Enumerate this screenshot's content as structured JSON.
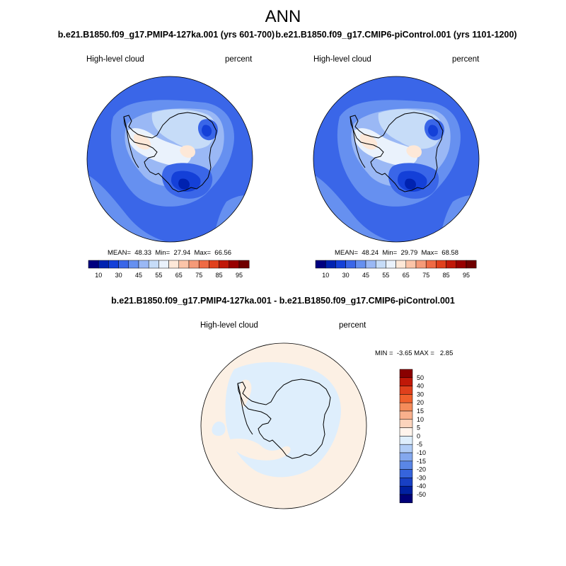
{
  "title": "ANN",
  "panels": [
    {
      "title": "b.e21.B1850.f09_g17.PMIP4-127ka.001 (yrs 601-700)",
      "left_label": "High-level cloud",
      "right_label": "percent",
      "stats": "MEAN=  48.33  Min=  27.94  Max=  66.56"
    },
    {
      "title": "b.e21.B1850.f09_g17.CMIP6-piControl.001 (yrs 1101-1200)",
      "left_label": "High-level cloud",
      "right_label": "percent",
      "stats": "MEAN=  48.24  Min=  29.79  Max=  68.58"
    },
    {
      "title": "b.e21.B1850.f09_g17.PMIP4-127ka.001 - b.e21.B1850.f09_g17.CMIP6-piControl.001",
      "left_label": "High-level cloud",
      "right_label": "percent",
      "stats": "MIN =  -3.65 MAX =   2.85"
    }
  ],
  "chart_data": [
    {
      "type": "heatmap",
      "title": "b.e21.B1850.f09_g17.PMIP4-127ka.001 (yrs 601-700)",
      "variable": "High-level cloud",
      "units": "percent",
      "mean": 48.33,
      "min": 27.94,
      "max": 66.56,
      "colorbar": {
        "tick_labels": [
          "10",
          "30",
          "45",
          "55",
          "65",
          "75",
          "85",
          "95"
        ],
        "colors": [
          "#000080",
          "#0022b0",
          "#1440d8",
          "#3a66e8",
          "#6690f0",
          "#9ab8f5",
          "#c6dcf8",
          "#eaf2fc",
          "#fde8d8",
          "#fbc4a8",
          "#f59a78",
          "#ef6a44",
          "#e0401c",
          "#c01808",
          "#980000",
          "#700000"
        ]
      }
    },
    {
      "type": "heatmap",
      "title": "b.e21.B1850.f09_g17.CMIP6-piControl.001 (yrs 1101-1200)",
      "variable": "High-level cloud",
      "units": "percent",
      "mean": 48.24,
      "min": 29.79,
      "max": 68.58,
      "colorbar": {
        "tick_labels": [
          "10",
          "30",
          "45",
          "55",
          "65",
          "75",
          "85",
          "95"
        ],
        "colors": [
          "#000080",
          "#0022b0",
          "#1440d8",
          "#3a66e8",
          "#6690f0",
          "#9ab8f5",
          "#c6dcf8",
          "#eaf2fc",
          "#fde8d8",
          "#fbc4a8",
          "#f59a78",
          "#ef6a44",
          "#e0401c",
          "#c01808",
          "#980000",
          "#700000"
        ]
      }
    },
    {
      "type": "heatmap",
      "title": "b.e21.B1850.f09_g17.PMIP4-127ka.001 - b.e21.B1850.f09_g17.CMIP6-piControl.001",
      "variable": "High-level cloud",
      "units": "percent",
      "min": -3.65,
      "max": 2.85,
      "colorbar": {
        "tick_labels": [
          "50",
          "40",
          "30",
          "20",
          "15",
          "10",
          "5",
          "0",
          "-5",
          "-10",
          "-15",
          "-20",
          "-30",
          "-40",
          "-50"
        ],
        "colors": [
          "#8a0000",
          "#c01808",
          "#e0401c",
          "#f0602c",
          "#f58c5a",
          "#f9b08c",
          "#fcd4bc",
          "#fff4ec",
          "#deeefc",
          "#b0ccf6",
          "#84a8ee",
          "#5a86e6",
          "#3664dc",
          "#1840c4",
          "#0020a0",
          "#000078"
        ]
      }
    }
  ]
}
